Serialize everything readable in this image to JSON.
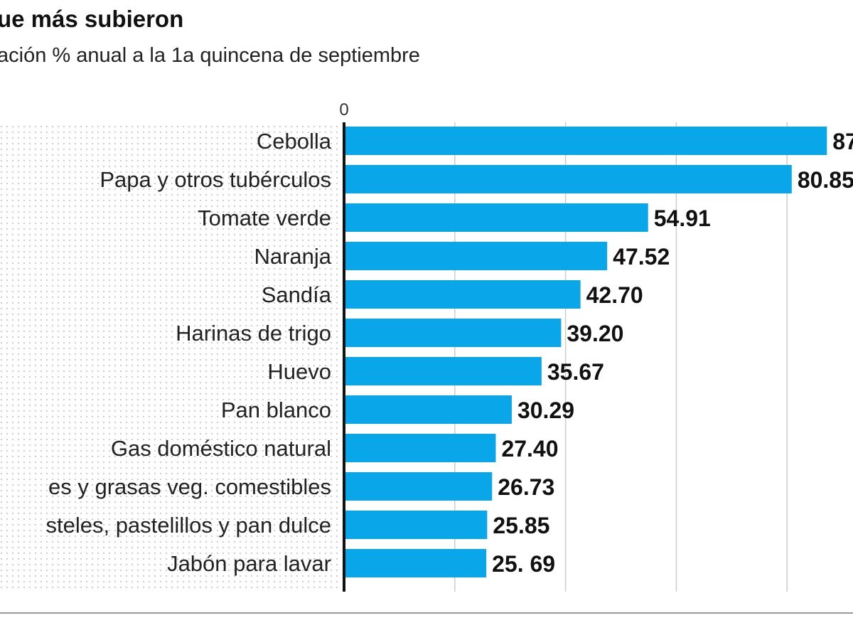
{
  "title": "ue más subieron",
  "subtitle": "ación % anual a la 1a quincena de septiembre",
  "colors": {
    "bar": "#0aa6ea",
    "grid": "#cccccc",
    "axis": "#111111",
    "dots": "#c8c8c8"
  },
  "chart_data": {
    "type": "bar",
    "orientation": "horizontal",
    "title": "ue más subieron",
    "subtitle": "ación % anual a la 1a quincena de septiembre",
    "xlim": [
      0,
      92
    ],
    "grid": true,
    "gridlines": [
      0,
      20,
      40,
      60,
      80
    ],
    "tick_labels": [
      "0"
    ],
    "categories": [
      "Cebolla",
      "Papa y otros tubérculos",
      "Tomate verde",
      "Naranja",
      "Sandía",
      "Harinas de trigo",
      "Huevo",
      "Pan blanco",
      "Gas doméstico natural",
      "es y grasas veg. comestibles",
      "steles, pastelillos y pan dulce",
      "Jabón para lavar"
    ],
    "values": [
      87.2,
      80.85,
      54.91,
      47.52,
      42.7,
      39.2,
      35.67,
      30.29,
      27.4,
      26.73,
      25.85,
      25.69
    ],
    "labels": [
      "87",
      "80.85",
      "54.91",
      "47.52",
      "42.70",
      "39.20",
      "35.67",
      "30.29",
      "27.40",
      "26.73",
      "25.85",
      "25. 69"
    ]
  }
}
